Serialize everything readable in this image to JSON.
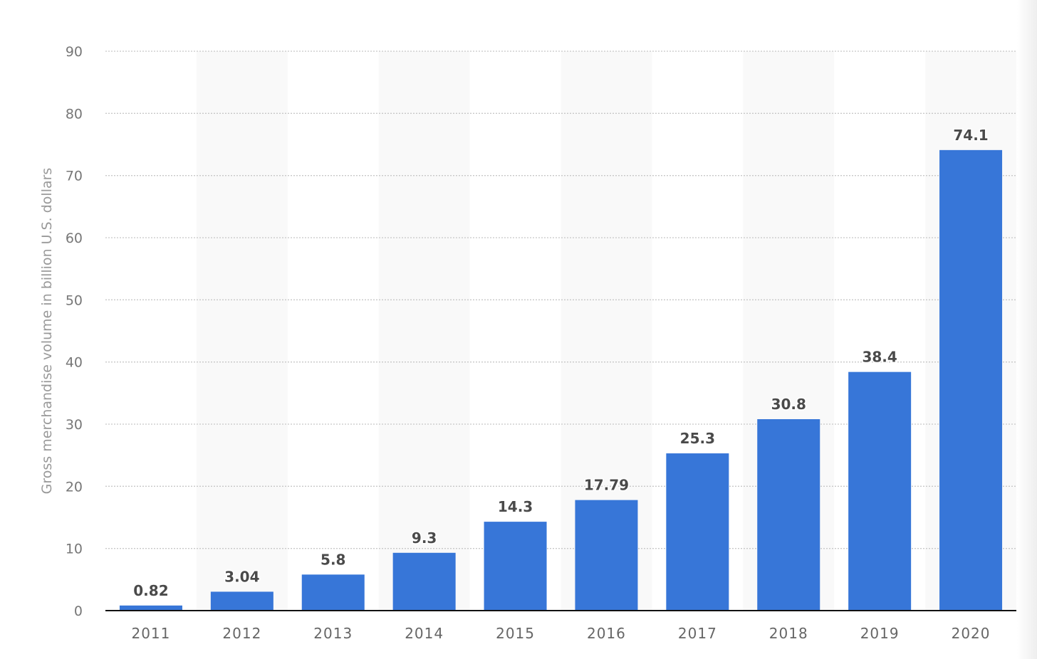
{
  "chart_data": {
    "type": "bar",
    "title": "",
    "xlabel": "",
    "ylabel": "Gross merchandise volume in billion U.S. dollars",
    "categories": [
      "2011",
      "2012",
      "2013",
      "2014",
      "2015",
      "2016",
      "2017",
      "2018",
      "2019",
      "2020"
    ],
    "values": [
      0.82,
      3.04,
      5.8,
      9.3,
      14.3,
      17.79,
      25.3,
      30.8,
      38.4,
      74.1
    ],
    "value_labels": [
      "0.82",
      "3.04",
      "5.8",
      "9.3",
      "14.3",
      "17.79",
      "25.3",
      "30.8",
      "38.4",
      "74.1"
    ],
    "ylim": [
      0,
      90
    ],
    "yticks": [
      0,
      10,
      20,
      30,
      40,
      50,
      60,
      70,
      80,
      90
    ],
    "grid": true,
    "legend": null
  },
  "colors": {
    "bar": "#3776d8",
    "band": "#f9f9f9",
    "grid": "#c8c8c8",
    "axis": "#111111",
    "tick_text": "#777777",
    "value_text": "#4a4a4a",
    "axis_title": "#999999"
  }
}
